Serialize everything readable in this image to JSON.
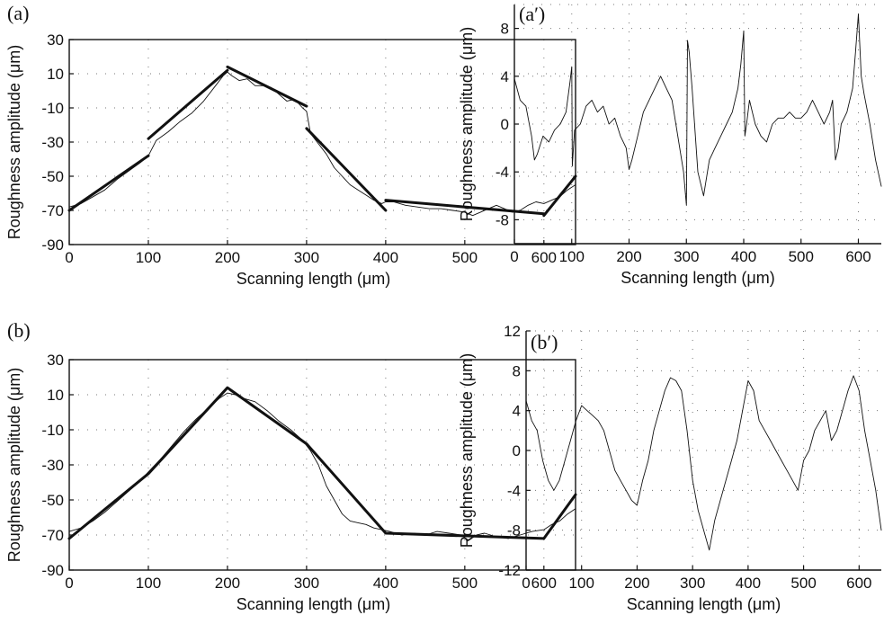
{
  "chart_data": [
    {
      "id": "a",
      "type": "line",
      "panel_label": "(a)",
      "xlabel": "Scanning length (μm)",
      "ylabel": "Roughness amplitude (μm)",
      "xlim": [
        0,
        640
      ],
      "ylim": [
        -90,
        30
      ],
      "xticks": [
        0,
        100,
        200,
        300,
        400,
        500,
        600
      ],
      "yticks": [
        -90,
        -70,
        -50,
        -30,
        -10,
        10,
        30
      ],
      "grid": "dotted",
      "series": [
        {
          "style": "thin",
          "x": [
            0,
            15,
            30,
            45,
            60,
            75,
            90,
            100,
            110,
            125,
            140,
            155,
            170,
            185,
            195,
            200,
            205,
            215,
            225,
            235,
            245,
            255,
            265,
            275,
            285,
            295,
            300,
            305,
            315,
            325,
            335,
            345,
            355,
            365,
            375,
            385,
            395,
            400,
            410,
            425,
            440,
            455,
            470,
            485,
            500,
            510,
            520,
            530,
            540,
            550,
            560,
            570,
            580,
            590,
            600,
            610,
            620,
            630,
            640
          ],
          "y": [
            -68,
            -66,
            -62,
            -58,
            -52,
            -47,
            -42,
            -38,
            -29,
            -24,
            -18,
            -13,
            -6,
            3,
            9,
            11,
            9,
            6,
            7,
            3,
            3,
            2,
            -2,
            -6,
            -5,
            -10,
            -12,
            -25,
            -31,
            -37,
            -45,
            -50,
            -55,
            -58,
            -61,
            -64,
            -66,
            -65,
            -65,
            -67,
            -68,
            -69,
            -69,
            -70,
            -71,
            -73,
            -71,
            -69,
            -67,
            -69,
            -71,
            -70,
            -67,
            -65,
            -66,
            -64,
            -62,
            -58,
            -55
          ]
        },
        {
          "style": "thick",
          "x": [
            0,
            100
          ],
          "y": [
            -70,
            -38
          ]
        },
        {
          "style": "thick",
          "x": [
            100,
            200
          ],
          "y": [
            -28,
            12
          ]
        },
        {
          "style": "thick",
          "x": [
            200,
            300
          ],
          "y": [
            14,
            -9
          ]
        },
        {
          "style": "thick",
          "x": [
            300,
            400
          ],
          "y": [
            -22,
            -70
          ]
        },
        {
          "style": "thick",
          "x": [
            400,
            600
          ],
          "y": [
            -64,
            -72
          ]
        },
        {
          "style": "thick",
          "x": [
            600,
            640
          ],
          "y": [
            -73,
            -50
          ]
        }
      ]
    },
    {
      "id": "a-prime",
      "type": "line",
      "panel_label": "(a′)",
      "xlabel": "Scanning length (μm)",
      "ylabel": "Roughness amplitude (μm)",
      "xlim": [
        0,
        640
      ],
      "ylim": [
        -10,
        10
      ],
      "xticks": [
        0,
        100,
        200,
        300,
        400,
        500,
        600
      ],
      "yticks": [
        -8,
        -4,
        0,
        4,
        8
      ],
      "grid": "dotted",
      "series": [
        {
          "style": "thin",
          "x": [
            0,
            10,
            20,
            30,
            35,
            40,
            50,
            60,
            70,
            80,
            90,
            97,
            100,
            101,
            105,
            115,
            125,
            135,
            145,
            155,
            165,
            175,
            185,
            195,
            200,
            205,
            215,
            225,
            235,
            245,
            255,
            265,
            275,
            285,
            295,
            300,
            302,
            305,
            310,
            320,
            330,
            340,
            350,
            360,
            370,
            380,
            390,
            395,
            400,
            402,
            405,
            410,
            420,
            430,
            440,
            450,
            460,
            470,
            480,
            490,
            500,
            510,
            520,
            530,
            540,
            550,
            555,
            560,
            565,
            570,
            580,
            590,
            595,
            600,
            605,
            610,
            620,
            630,
            640
          ],
          "y": [
            3.8,
            2,
            1.5,
            -1,
            -3,
            -2.5,
            -1,
            -1.5,
            -0.5,
            0,
            1,
            3.5,
            4.8,
            -3.5,
            -0.5,
            0,
            1.5,
            2,
            1,
            1.5,
            0,
            0.5,
            -1,
            -2,
            -3.8,
            -3,
            -1,
            1,
            2,
            3,
            4,
            3,
            2,
            -1,
            -4,
            -6.8,
            7,
            6,
            3,
            -4,
            -6,
            -3,
            -2,
            -1,
            0,
            1,
            3,
            5,
            7.8,
            -1,
            0,
            2,
            0,
            -1,
            -1.5,
            0,
            0.5,
            0.5,
            1,
            0.5,
            0.5,
            1,
            2,
            1,
            0,
            1,
            2,
            -3,
            -2,
            0,
            1,
            3,
            6,
            9.2,
            4,
            2.5,
            0,
            -3,
            -5.2
          ]
        }
      ]
    },
    {
      "id": "b",
      "type": "line",
      "panel_label": "(b)",
      "xlabel": "Scanning length (μm)",
      "ylabel": "Roughness amplitude (μm)",
      "xlim": [
        0,
        640
      ],
      "ylim": [
        -90,
        30
      ],
      "xticks": [
        0,
        100,
        200,
        300,
        400,
        500,
        600
      ],
      "yticks": [
        -90,
        -70,
        -50,
        -30,
        -10,
        10,
        30
      ],
      "grid": "dotted",
      "series": [
        {
          "style": "thin",
          "x": [
            0,
            15,
            30,
            45,
            60,
            75,
            90,
            100,
            115,
            130,
            145,
            160,
            175,
            190,
            200,
            210,
            220,
            235,
            250,
            265,
            280,
            295,
            305,
            315,
            325,
            335,
            345,
            355,
            365,
            375,
            385,
            395,
            405,
            420,
            435,
            450,
            465,
            480,
            495,
            505,
            515,
            525,
            540,
            555,
            570,
            585,
            600,
            610,
            620,
            630,
            640
          ],
          "y": [
            -68,
            -66,
            -62,
            -57,
            -51,
            -45,
            -39,
            -34,
            -27,
            -19,
            -11,
            -4,
            2,
            8,
            11,
            10,
            8,
            6,
            1,
            -5,
            -10,
            -16,
            -22,
            -30,
            -42,
            -50,
            -58,
            -62,
            -63,
            -64,
            -66,
            -67,
            -68,
            -70,
            -69,
            -70,
            -68,
            -69,
            -70,
            -73,
            -70,
            -69,
            -71,
            -72,
            -70,
            -68,
            -67,
            -64,
            -62,
            -58,
            -55
          ]
        },
        {
          "style": "thick",
          "x": [
            0,
            100,
            200,
            300,
            400,
            600,
            640
          ],
          "y": [
            -72,
            -35,
            14,
            -18,
            -69,
            -72,
            -47
          ]
        }
      ]
    },
    {
      "id": "b-prime",
      "type": "line",
      "panel_label": "(b′)",
      "xlabel": "Scanning length (μm)",
      "ylabel": "Roughness amplitude (μm)",
      "xlim": [
        0,
        640
      ],
      "ylim": [
        -12,
        12
      ],
      "xticks": [
        0,
        100,
        200,
        300,
        400,
        500,
        600
      ],
      "yticks": [
        -12,
        -8,
        -4,
        0,
        4,
        8,
        12
      ],
      "grid": "dotted",
      "series": [
        {
          "style": "thin",
          "x": [
            0,
            10,
            20,
            30,
            40,
            50,
            60,
            70,
            80,
            90,
            100,
            110,
            120,
            130,
            140,
            150,
            160,
            170,
            180,
            190,
            200,
            210,
            220,
            230,
            240,
            250,
            260,
            270,
            280,
            290,
            300,
            310,
            320,
            330,
            340,
            350,
            360,
            370,
            380,
            390,
            400,
            410,
            420,
            430,
            440,
            450,
            460,
            470,
            480,
            490,
            500,
            510,
            520,
            530,
            540,
            550,
            560,
            570,
            580,
            590,
            600,
            610,
            620,
            630,
            640
          ],
          "y": [
            5,
            3,
            2,
            -1,
            -3,
            -4,
            -3,
            -1,
            1,
            3,
            4.5,
            4,
            3.5,
            3,
            2,
            0,
            -2,
            -3,
            -4,
            -5,
            -5.5,
            -3,
            -1,
            2,
            4,
            6,
            7.3,
            7,
            6,
            2,
            -3,
            -6,
            -8,
            -10,
            -7,
            -5,
            -3,
            -1,
            1,
            4,
            7,
            6,
            3,
            2,
            1,
            0,
            -1,
            -2,
            -3,
            -4,
            -1,
            0,
            2,
            3,
            4,
            1,
            2,
            4,
            6,
            7.5,
            6,
            2,
            -1,
            -4,
            -8
          ]
        }
      ]
    }
  ]
}
